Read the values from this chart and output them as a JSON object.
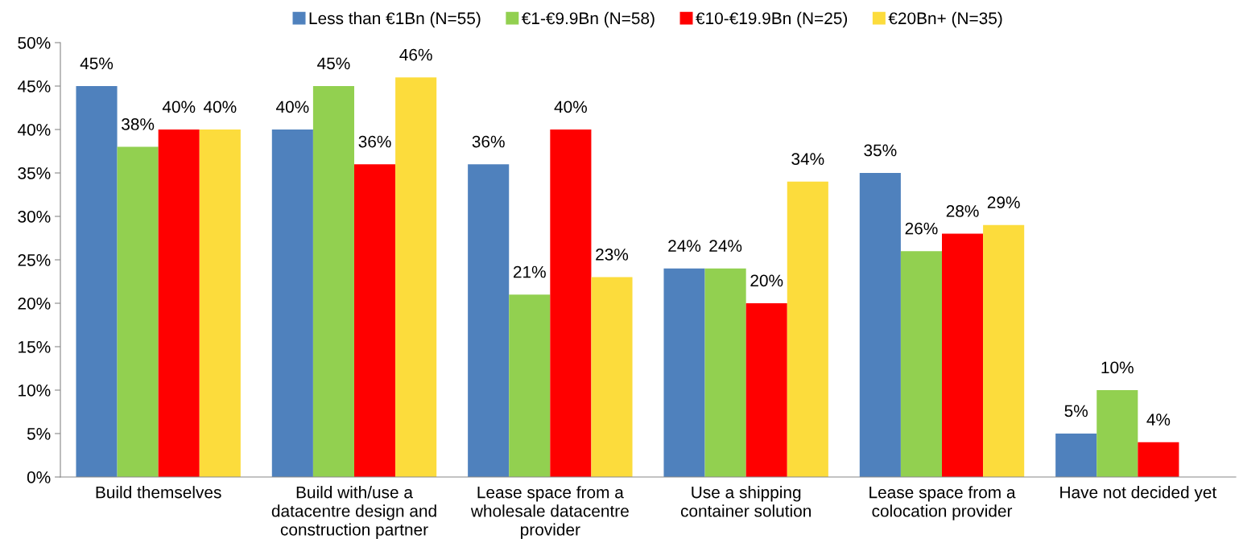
{
  "chart_data": {
    "type": "bar",
    "categories": [
      "Build themselves",
      "Build with/use a\ndatacentre design and\nconstruction partner",
      "Lease space from a\nwholesale datacentre\nprovider",
      "Use a shipping\ncontainer solution",
      "Lease space from a\ncolocation provider",
      "Have not decided yet"
    ],
    "series": [
      {
        "name": "Less than €1Bn (N=55)",
        "color": "#4f81bd",
        "values": [
          45,
          40,
          36,
          24,
          35,
          5
        ],
        "value_labels": [
          "45%",
          "40%",
          "36%",
          "24%",
          "35%",
          "5%"
        ]
      },
      {
        "name": "€1-€9.9Bn (N=58)",
        "color": "#92d050",
        "values": [
          38,
          45,
          21,
          24,
          26,
          10
        ],
        "value_labels": [
          "38%",
          "45%",
          "21%",
          "24%",
          "26%",
          "10%"
        ]
      },
      {
        "name": "€10-€19.9Bn (N=25)",
        "color": "#ff0000",
        "values": [
          40,
          36,
          40,
          20,
          28,
          4
        ],
        "value_labels": [
          "40%",
          "36%",
          "40%",
          "20%",
          "28%",
          "4%"
        ]
      },
      {
        "name": "€20Bn+ (N=35)",
        "color": "#fcdc3c",
        "values": [
          40,
          46,
          23,
          34,
          29,
          null
        ],
        "value_labels": [
          "40%",
          "46%",
          "23%",
          "34%",
          "29%",
          null
        ]
      }
    ],
    "ylim": [
      0,
      50
    ],
    "yticks": [
      {
        "value": 0,
        "label": "0%"
      },
      {
        "value": 5,
        "label": "5%"
      },
      {
        "value": 10,
        "label": "10%"
      },
      {
        "value": 15,
        "label": "15%"
      },
      {
        "value": 20,
        "label": "20%"
      },
      {
        "value": 25,
        "label": "25%"
      },
      {
        "value": 30,
        "label": "30%"
      },
      {
        "value": 35,
        "label": "35%"
      },
      {
        "value": 40,
        "label": "40%"
      },
      {
        "value": 45,
        "label": "45%"
      },
      {
        "value": 50,
        "label": "50%"
      }
    ],
    "grid": false,
    "legend": "top"
  }
}
